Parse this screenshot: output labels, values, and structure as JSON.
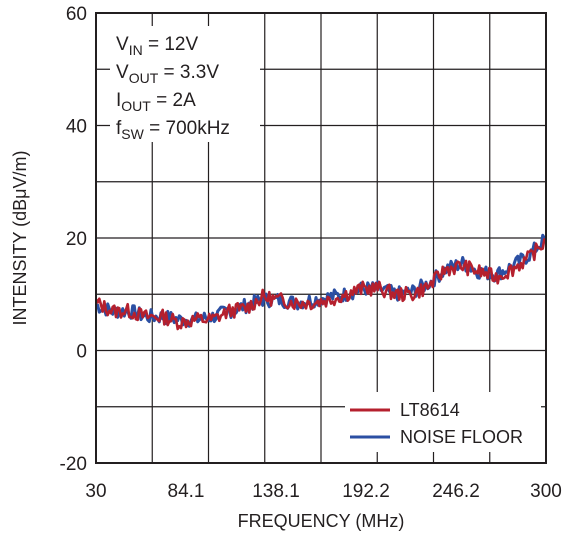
{
  "chart_data": {
    "type": "line",
    "title": "",
    "xlabel": "FREQUENCY (MHz)",
    "ylabel": "INTENSITY (dBμV/m)",
    "xlim": [
      30,
      300
    ],
    "ylim": [
      -20,
      60
    ],
    "x_ticks": [
      "30",
      "84.1",
      "138.1",
      "192.2",
      "246.2",
      "300"
    ],
    "y_ticks": [
      "60",
      "40",
      "20",
      "0",
      "-20"
    ],
    "grid": true,
    "legend_position": "bottom-right",
    "annotations": [
      {
        "main": "V",
        "sub": "IN",
        "rest": " = 12V"
      },
      {
        "main": "V",
        "sub": "OUT",
        "rest": " = 3.3V"
      },
      {
        "main": "I",
        "sub": "OUT",
        "rest": " = 2A"
      },
      {
        "main": "f",
        "sub": "SW",
        "rest": " = 700kHz"
      }
    ],
    "colors": {
      "LT8614": "#b5202e",
      "NOISE FLOOR": "#2b4fa3",
      "grid": "#231f20",
      "axis": "#231f20"
    },
    "series": [
      {
        "name": "NOISE FLOOR",
        "x": [
          30,
          40,
          50,
          60,
          70,
          80,
          90,
          100,
          110,
          120,
          130,
          140,
          150,
          160,
          170,
          180,
          190,
          200,
          210,
          220,
          230,
          240,
          250,
          260,
          270,
          280,
          290,
          300
        ],
        "y": [
          8,
          7,
          7,
          6,
          6,
          5.5,
          5.5,
          6,
          7,
          8,
          9,
          9,
          8.5,
          9,
          9.5,
          10,
          11,
          11,
          10,
          10.5,
          12,
          14.5,
          15.5,
          14,
          13.5,
          15,
          17,
          20
        ]
      },
      {
        "name": "LT8614",
        "x": [
          30,
          40,
          50,
          60,
          70,
          80,
          90,
          100,
          110,
          120,
          130,
          140,
          150,
          160,
          170,
          180,
          190,
          200,
          210,
          220,
          230,
          240,
          250,
          260,
          270,
          280,
          290,
          300
        ],
        "y": [
          8.5,
          7,
          7,
          6,
          6,
          5,
          5.5,
          5.5,
          7,
          7.5,
          9.5,
          9,
          8.5,
          8.5,
          9,
          10,
          11,
          11,
          10,
          10,
          11.5,
          14.5,
          15,
          14,
          13,
          14.5,
          16.5,
          19.5
        ]
      }
    ]
  }
}
